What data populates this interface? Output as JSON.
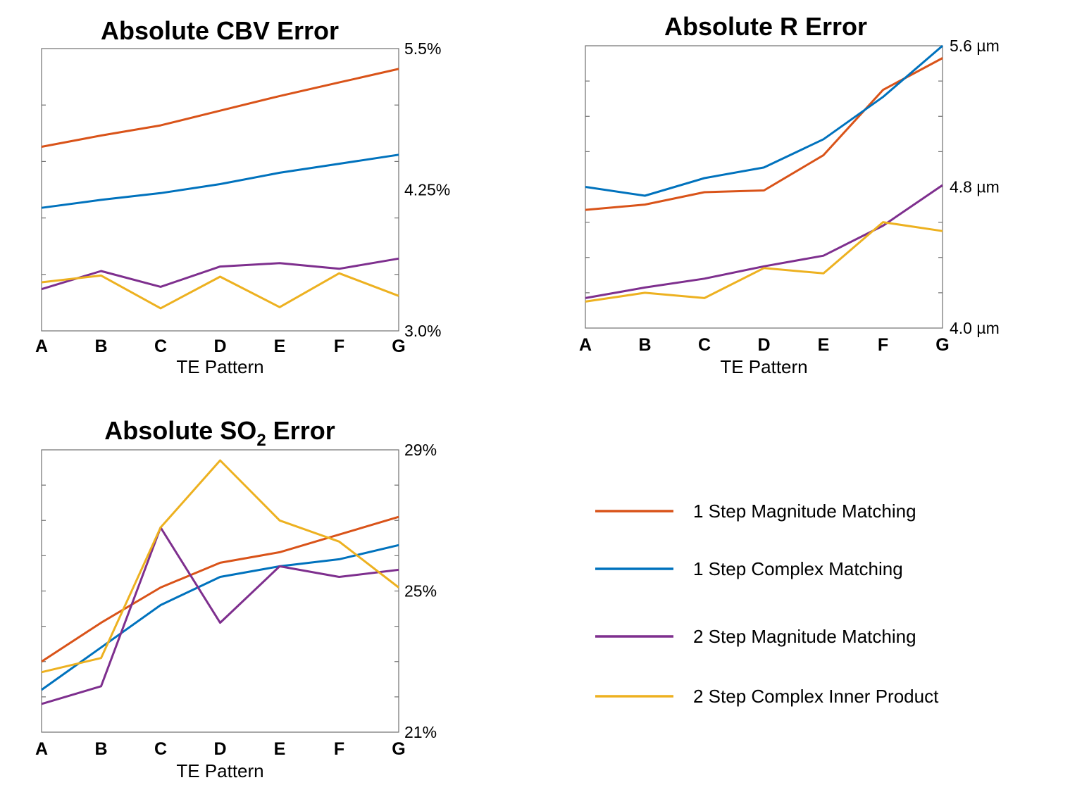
{
  "chart_data": [
    {
      "type": "line",
      "title": "Absolute CBV Error",
      "title_sub": "",
      "title_rest": "",
      "xlabel": "TE Pattern",
      "categories": [
        "A",
        "B",
        "C",
        "D",
        "E",
        "F",
        "G"
      ],
      "ylim": [
        3.0,
        5.5
      ],
      "yticks": [
        "5.5%",
        "4.25%",
        "3.0%"
      ],
      "ytick_values": [
        5.5,
        4.25,
        3.0
      ],
      "y_axis_side": "right",
      "grid": false,
      "series": [
        {
          "name": "1 Step Magnitude Matching",
          "color": "#d95319",
          "values": [
            4.63,
            4.73,
            4.82,
            4.95,
            5.08,
            5.2,
            5.32
          ]
        },
        {
          "name": "1 Step Complex Matching",
          "color": "#0072bd",
          "values": [
            4.09,
            4.16,
            4.22,
            4.3,
            4.4,
            4.48,
            4.56
          ]
        },
        {
          "name": "2 Step Magnitude Matching",
          "color": "#7e2f8e",
          "values": [
            3.37,
            3.53,
            3.39,
            3.57,
            3.6,
            3.55,
            3.64
          ]
        },
        {
          "name": "2 Step Complex Inner Product",
          "color": "#edb120",
          "values": [
            3.43,
            3.49,
            3.2,
            3.48,
            3.21,
            3.51,
            3.31
          ]
        }
      ]
    },
    {
      "type": "line",
      "title": "Absolute R Error",
      "title_sub": "",
      "title_rest": "",
      "xlabel": "TE Pattern",
      "categories": [
        "A",
        "B",
        "C",
        "D",
        "E",
        "F",
        "G"
      ],
      "ylim": [
        4.0,
        5.6
      ],
      "yticks": [
        "5.6 µm",
        "4.8 µm",
        "4.0 µm"
      ],
      "ytick_values": [
        5.6,
        4.8,
        4.0
      ],
      "y_axis_side": "right",
      "grid": false,
      "series": [
        {
          "name": "1 Step Magnitude Matching",
          "color": "#d95319",
          "values": [
            4.67,
            4.7,
            4.77,
            4.78,
            4.98,
            5.35,
            5.53
          ]
        },
        {
          "name": "1 Step Complex Matching",
          "color": "#0072bd",
          "values": [
            4.8,
            4.75,
            4.85,
            4.91,
            5.07,
            5.31,
            5.6
          ]
        },
        {
          "name": "2 Step Magnitude Matching",
          "color": "#7e2f8e",
          "values": [
            4.17,
            4.23,
            4.28,
            4.35,
            4.41,
            4.58,
            4.81
          ]
        },
        {
          "name": "2 Step Complex Inner Product",
          "color": "#edb120",
          "values": [
            4.15,
            4.2,
            4.17,
            4.34,
            4.31,
            4.6,
            4.55
          ]
        }
      ]
    },
    {
      "type": "line",
      "title": "Absolute SO",
      "title_sub": "2",
      "title_rest": " Error",
      "xlabel": "TE Pattern",
      "categories": [
        "A",
        "B",
        "C",
        "D",
        "E",
        "F",
        "G"
      ],
      "ylim": [
        21,
        29
      ],
      "yticks": [
        "29%",
        "25%",
        "21%"
      ],
      "ytick_values": [
        29,
        25,
        21
      ],
      "y_axis_side": "right",
      "grid": false,
      "series": [
        {
          "name": "1 Step Magnitude Matching",
          "color": "#d95319",
          "values": [
            23.0,
            24.1,
            25.1,
            25.8,
            26.1,
            26.6,
            27.1
          ]
        },
        {
          "name": "1 Step Complex Matching",
          "color": "#0072bd",
          "values": [
            22.2,
            23.4,
            24.6,
            25.4,
            25.7,
            25.9,
            26.3
          ]
        },
        {
          "name": "2 Step Magnitude Matching",
          "color": "#7e2f8e",
          "values": [
            21.8,
            22.3,
            26.8,
            24.1,
            25.7,
            25.4,
            25.6
          ]
        },
        {
          "name": "2 Step Complex Inner Product",
          "color": "#edb120",
          "values": [
            22.7,
            23.1,
            26.8,
            28.7,
            27.0,
            26.4,
            25.1
          ]
        }
      ]
    }
  ],
  "legend": {
    "placement": "bottom-right",
    "entries": [
      {
        "label": "1 Step Magnitude Matching",
        "color": "#d95319"
      },
      {
        "label": "1 Step Complex Matching",
        "color": "#0072bd"
      },
      {
        "label": "2 Step Magnitude Matching",
        "color": "#7e2f8e"
      },
      {
        "label": "2 Step Complex Inner Product",
        "color": "#edb120"
      }
    ]
  }
}
